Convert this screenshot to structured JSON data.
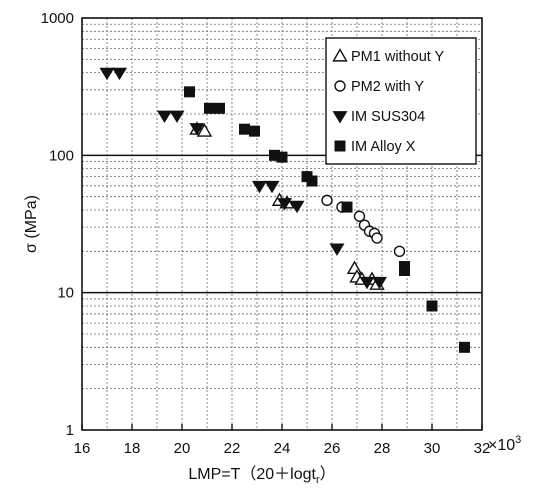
{
  "chart_data": {
    "type": "scatter",
    "title": "",
    "xlabel": "LMP=T（20＋logt",
    "xlabel_sub": "r",
    "xlabel_close": "）",
    "ylabel": "σ (MPa)",
    "x_multiplier": "×10",
    "x_multiplier_exp": "3",
    "xlim": [
      16,
      32
    ],
    "ylim": [
      1,
      1000
    ],
    "yscale": "log",
    "grid": true,
    "legend_position": "top-right",
    "x_ticks": [
      16,
      18,
      20,
      22,
      24,
      26,
      28,
      30,
      32
    ],
    "y_ticks": [
      1,
      10,
      100,
      1000
    ],
    "series": [
      {
        "name": "PM1 without Y",
        "marker": "triangle-open",
        "points": [
          [
            20.6,
            155
          ],
          [
            20.9,
            150
          ],
          [
            23.9,
            47
          ],
          [
            24.2,
            45
          ],
          [
            26.9,
            15
          ],
          [
            27.0,
            13
          ],
          [
            27.2,
            12.5
          ],
          [
            27.6,
            12.5
          ],
          [
            27.8,
            11.5
          ]
        ]
      },
      {
        "name": "PM2 with Y",
        "marker": "circle-open",
        "points": [
          [
            25.8,
            47
          ],
          [
            26.4,
            42
          ],
          [
            27.1,
            36
          ],
          [
            27.3,
            31
          ],
          [
            27.5,
            28
          ],
          [
            27.7,
            27
          ],
          [
            27.8,
            25
          ],
          [
            28.7,
            20
          ]
        ]
      },
      {
        "name": "IM SUS304",
        "marker": "triangle-down-filled",
        "points": [
          [
            17.0,
            400
          ],
          [
            17.5,
            400
          ],
          [
            19.3,
            195
          ],
          [
            19.8,
            195
          ],
          [
            20.6,
            158
          ],
          [
            23.1,
            60
          ],
          [
            23.6,
            60
          ],
          [
            24.1,
            45
          ],
          [
            24.6,
            43
          ],
          [
            26.2,
            21
          ],
          [
            27.4,
            12
          ],
          [
            27.9,
            12
          ]
        ]
      },
      {
        "name": "IM Alloy X",
        "marker": "square-filled",
        "points": [
          [
            20.3,
            290
          ],
          [
            21.1,
            220
          ],
          [
            21.5,
            220
          ],
          [
            22.5,
            155
          ],
          [
            22.9,
            150
          ],
          [
            23.7,
            100
          ],
          [
            24.0,
            97
          ],
          [
            25.0,
            70
          ],
          [
            25.2,
            65
          ],
          [
            26.6,
            42
          ],
          [
            28.9,
            15.5
          ],
          [
            28.9,
            14.5
          ],
          [
            30.0,
            8
          ],
          [
            31.3,
            4
          ]
        ]
      }
    ]
  }
}
